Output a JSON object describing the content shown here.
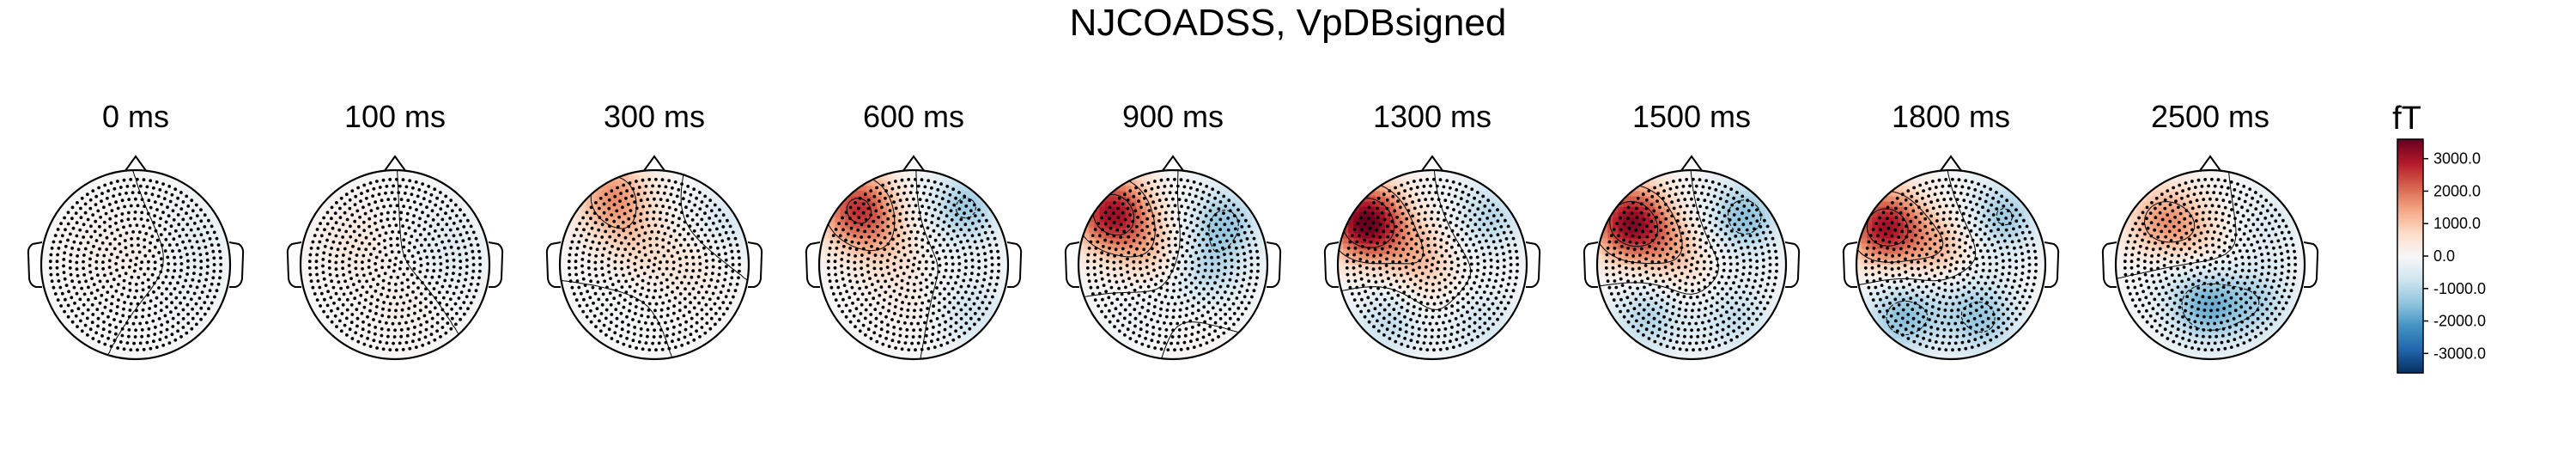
{
  "chart_data": {
    "type": "topomap",
    "title": "NJCOADSS, VpDBsigned",
    "unit": "fT",
    "maps": [
      {
        "time_label": "0 ms",
        "time_ms": 0,
        "blobs": [
          {
            "x": 0.25,
            "y": 0.1,
            "v": 300
          },
          {
            "x": -0.35,
            "y": 0.15,
            "v": 200
          },
          {
            "x": 0.55,
            "y": 0.3,
            "v": -400
          },
          {
            "x": 0.5,
            "y": -0.2,
            "v": -250
          }
        ]
      },
      {
        "time_label": "100 ms",
        "time_ms": 100,
        "blobs": [
          {
            "x": -0.45,
            "y": 0.25,
            "v": 400
          },
          {
            "x": 0.1,
            "y": -0.4,
            "v": 250
          },
          {
            "x": 0.55,
            "y": 0.3,
            "v": -350
          },
          {
            "x": 0.6,
            "y": -0.1,
            "v": -200
          }
        ]
      },
      {
        "time_label": "300 ms",
        "time_ms": 300,
        "blobs": [
          {
            "x": -0.45,
            "y": 0.72,
            "v": 1600
          },
          {
            "x": -0.2,
            "y": 0.2,
            "v": 700
          },
          {
            "x": 0.4,
            "y": 0.0,
            "v": 400
          },
          {
            "x": 0.75,
            "y": 0.45,
            "v": -600
          },
          {
            "x": -0.3,
            "y": -0.2,
            "v": -150
          }
        ]
      },
      {
        "time_label": "600 ms",
        "time_ms": 600,
        "blobs": [
          {
            "x": -0.6,
            "y": 0.6,
            "v": 2500
          },
          {
            "x": -0.3,
            "y": 0.2,
            "v": 700
          },
          {
            "x": 0.55,
            "y": 0.6,
            "v": -1300
          },
          {
            "x": 0.6,
            "y": -0.5,
            "v": -700
          },
          {
            "x": 0.0,
            "y": -0.4,
            "v": 250
          }
        ]
      },
      {
        "time_label": "900 ms",
        "time_ms": 900,
        "blobs": [
          {
            "x": -0.65,
            "y": 0.55,
            "v": 3000
          },
          {
            "x": -0.25,
            "y": 0.15,
            "v": 900
          },
          {
            "x": 0.55,
            "y": 0.45,
            "v": -1300
          },
          {
            "x": 0.35,
            "y": -0.1,
            "v": -900
          },
          {
            "x": -0.3,
            "y": -0.45,
            "v": -300
          },
          {
            "x": 0.2,
            "y": -0.6,
            "v": 200
          }
        ]
      },
      {
        "time_label": "1300 ms",
        "time_ms": 1300,
        "blobs": [
          {
            "x": -0.7,
            "y": 0.45,
            "v": 3600
          },
          {
            "x": -0.15,
            "y": 0.1,
            "v": 1000
          },
          {
            "x": 0.6,
            "y": 0.5,
            "v": -1000
          },
          {
            "x": -0.45,
            "y": -0.6,
            "v": -900
          },
          {
            "x": 0.5,
            "y": -0.6,
            "v": -700
          },
          {
            "x": 0.05,
            "y": -0.3,
            "v": 300
          }
        ]
      },
      {
        "time_label": "1500 ms",
        "time_ms": 1500,
        "blobs": [
          {
            "x": -0.65,
            "y": 0.45,
            "v": 3200
          },
          {
            "x": -0.2,
            "y": 0.15,
            "v": 1000
          },
          {
            "x": 0.55,
            "y": 0.5,
            "v": -1500
          },
          {
            "x": -0.45,
            "y": -0.55,
            "v": -1100
          },
          {
            "x": 0.45,
            "y": -0.55,
            "v": -900
          },
          {
            "x": 0.1,
            "y": -0.25,
            "v": 200
          }
        ]
      },
      {
        "time_label": "1800 ms",
        "time_ms": 1800,
        "blobs": [
          {
            "x": -0.7,
            "y": 0.4,
            "v": 3000
          },
          {
            "x": -0.1,
            "y": 0.15,
            "v": 1200
          },
          {
            "x": 0.55,
            "y": 0.5,
            "v": -1300
          },
          {
            "x": -0.5,
            "y": -0.55,
            "v": -1500
          },
          {
            "x": 0.35,
            "y": -0.6,
            "v": -1200
          },
          {
            "x": 0.1,
            "y": -0.25,
            "v": -500
          }
        ]
      },
      {
        "time_label": "2500 ms",
        "time_ms": 2500,
        "blobs": [
          {
            "x": -0.5,
            "y": 0.45,
            "v": 1500
          },
          {
            "x": -0.1,
            "y": 0.3,
            "v": 600
          },
          {
            "x": -0.05,
            "y": -0.45,
            "v": -1600
          },
          {
            "x": 0.5,
            "y": -0.4,
            "v": -1000
          },
          {
            "x": 0.6,
            "y": 0.45,
            "v": -500
          },
          {
            "x": -0.4,
            "y": -0.1,
            "v": -300
          }
        ]
      }
    ],
    "colorbar": {
      "label": "fT",
      "vmin": -3600,
      "vmax": 3600,
      "ticks": [
        3000,
        2000,
        1000,
        0,
        -1000,
        -2000,
        -3000
      ],
      "tick_labels": [
        "3000.0",
        "2000.0",
        "1000.0",
        "0.0",
        "-1000.0",
        "-2000.0",
        "-3000.0"
      ],
      "colormap": "RdBu_r",
      "colors": [
        "#053061",
        "#2166ac",
        "#4393c3",
        "#92c5de",
        "#d1e5f0",
        "#f7f7f7",
        "#fddbc7",
        "#f4a582",
        "#d6604d",
        "#b2182b",
        "#67001f"
      ]
    },
    "contours": [
      -2400,
      -1200,
      0,
      1200,
      2400
    ],
    "sensors": "dots"
  }
}
